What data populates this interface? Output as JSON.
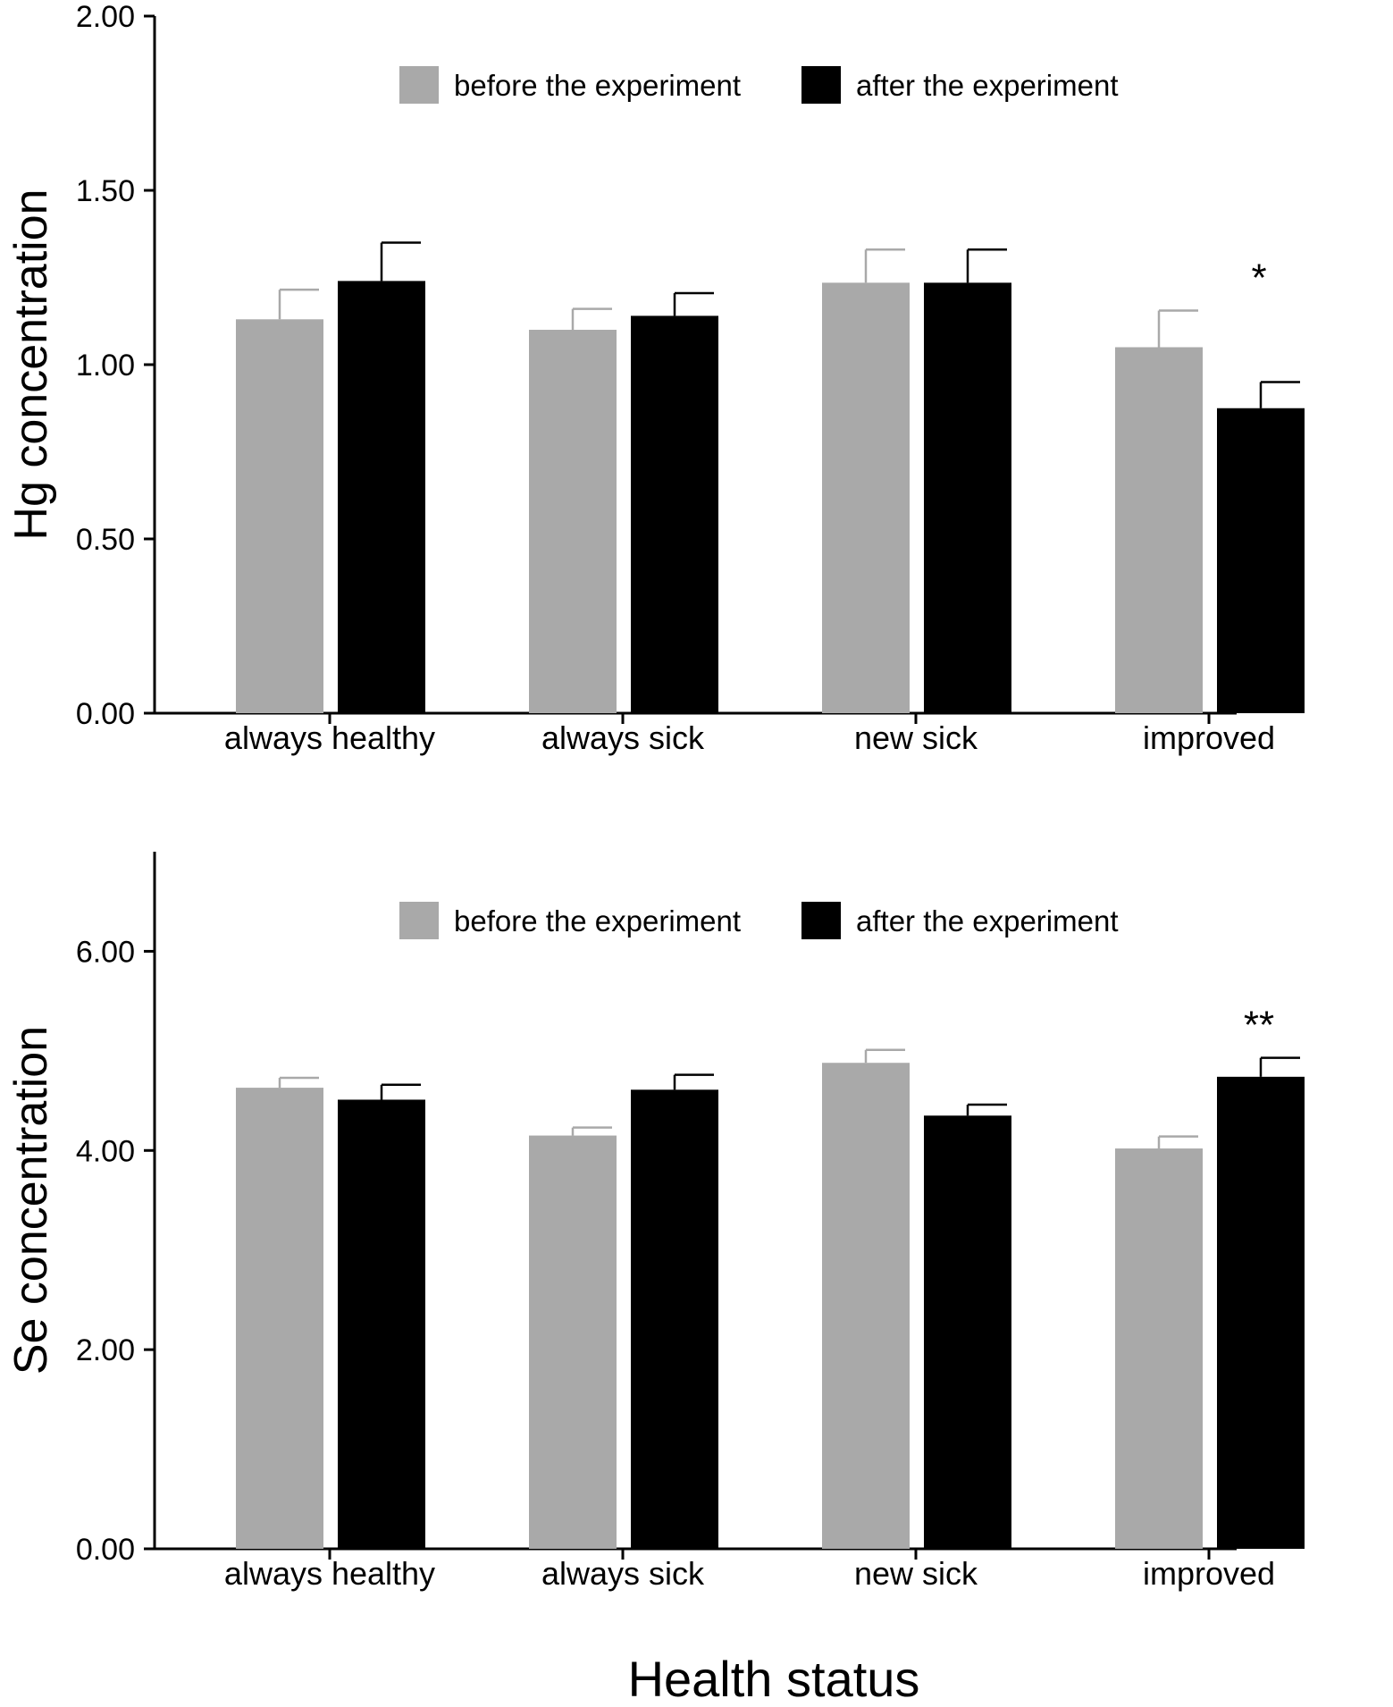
{
  "chart_data": [
    {
      "type": "bar",
      "title": "",
      "xlabel": "",
      "ylabel": "Hg concentration",
      "ylim": [
        0,
        2.0
      ],
      "yticks": [
        0,
        0.5,
        1.0,
        1.5,
        2.0
      ],
      "ytick_labels": [
        "0.00",
        "0.50",
        "1.00",
        "1.50",
        "2.00"
      ],
      "categories": [
        "always healthy",
        "always sick",
        "new sick",
        "improved"
      ],
      "series": [
        {
          "name": "before the experiment",
          "color": "#a9a9a9",
          "error_color": "#a9a9a9",
          "values": [
            1.13,
            1.1,
            1.235,
            1.05
          ],
          "errors": [
            0.085,
            0.06,
            0.095,
            0.105
          ]
        },
        {
          "name": "after the experiment",
          "color": "#000000",
          "error_color": "#000000",
          "values": [
            1.24,
            1.14,
            1.235,
            0.875
          ],
          "errors": [
            0.11,
            0.065,
            0.095,
            0.075
          ]
        }
      ],
      "annotations": [
        {
          "category_index": 3,
          "text": "*"
        }
      ],
      "legend": "top-center",
      "grid": false
    },
    {
      "type": "bar",
      "title": "",
      "xlabel": "Health status",
      "ylabel": "Se concentration",
      "ylim": [
        0,
        7.0
      ],
      "yticks": [
        0,
        2.0,
        4.0,
        6.0
      ],
      "ytick_labels": [
        "0.00",
        "2.00",
        "4.00",
        "6.00"
      ],
      "categories": [
        "always healthy",
        "always sick",
        "new sick",
        "improved"
      ],
      "series": [
        {
          "name": "before the experiment",
          "color": "#a9a9a9",
          "error_color": "#a9a9a9",
          "values": [
            4.63,
            4.15,
            4.88,
            4.02
          ],
          "errors": [
            0.1,
            0.08,
            0.13,
            0.12
          ]
        },
        {
          "name": "after the experiment",
          "color": "#000000",
          "error_color": "#000000",
          "values": [
            4.51,
            4.61,
            4.35,
            4.74
          ],
          "errors": [
            0.15,
            0.15,
            0.11,
            0.19
          ]
        }
      ],
      "annotations": [
        {
          "category_index": 3,
          "text": "**"
        }
      ],
      "legend": "top-center",
      "grid": false
    }
  ]
}
